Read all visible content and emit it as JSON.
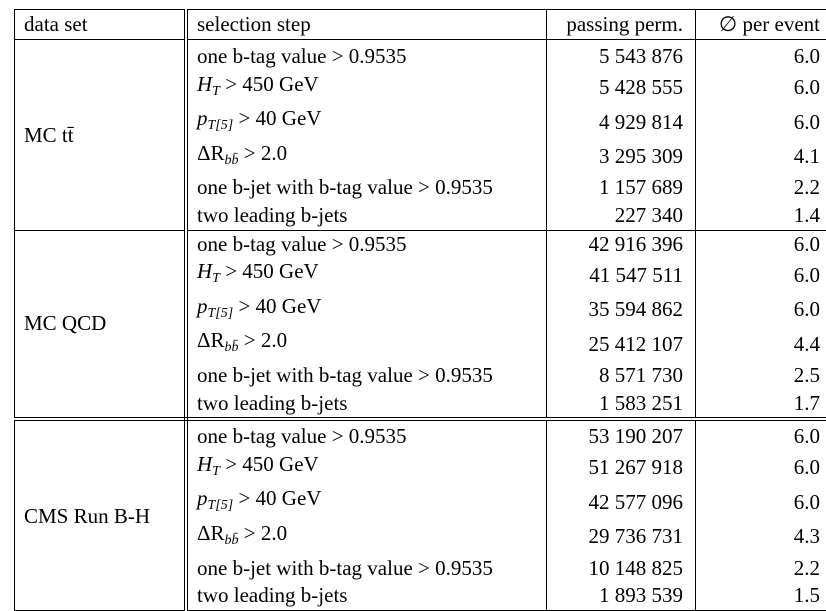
{
  "headers": [
    "data set",
    "selection step",
    "passing perm.",
    "∅ per event"
  ],
  "steps": {
    "btag": "one b-tag value > 0.9535",
    "ht_var": "H",
    "ht_sub": "T",
    "ht_rest": " > 450 GeV",
    "pt_var": "p",
    "pt_sub": "T[5]",
    "pt_rest": " > 40 GeV",
    "dr_var": "ΔR",
    "dr_sub": "bb̄",
    "dr_rest": " > 2.0",
    "bjet": "one b-jet with b-tag value > 0.9535",
    "lead": "two leading b-jets"
  },
  "groups": [
    {
      "name": "MC tt̄",
      "rows": [
        {
          "passing": "5 543 876",
          "per_event": "6.0"
        },
        {
          "passing": "5 428 555",
          "per_event": "6.0"
        },
        {
          "passing": "4 929 814",
          "per_event": "6.0"
        },
        {
          "passing": "3 295 309",
          "per_event": "4.1"
        },
        {
          "passing": "1 157 689",
          "per_event": "2.2"
        },
        {
          "passing": "227 340",
          "per_event": "1.4"
        }
      ]
    },
    {
      "name": "MC QCD",
      "rows": [
        {
          "passing": "42 916 396",
          "per_event": "6.0"
        },
        {
          "passing": "41 547 511",
          "per_event": "6.0"
        },
        {
          "passing": "35 594 862",
          "per_event": "6.0"
        },
        {
          "passing": "25 412 107",
          "per_event": "4.4"
        },
        {
          "passing": "8 571 730",
          "per_event": "2.5"
        },
        {
          "passing": "1 583 251",
          "per_event": "1.7"
        }
      ]
    },
    {
      "name": "CMS Run B-H",
      "rows": [
        {
          "passing": "53 190 207",
          "per_event": "6.0"
        },
        {
          "passing": "51 267 918",
          "per_event": "6.0"
        },
        {
          "passing": "42 577 096",
          "per_event": "6.0"
        },
        {
          "passing": "29 736 731",
          "per_event": "4.3"
        },
        {
          "passing": "10 148 825",
          "per_event": "2.2"
        },
        {
          "passing": "1 893 539",
          "per_event": "1.5"
        }
      ]
    }
  ]
}
